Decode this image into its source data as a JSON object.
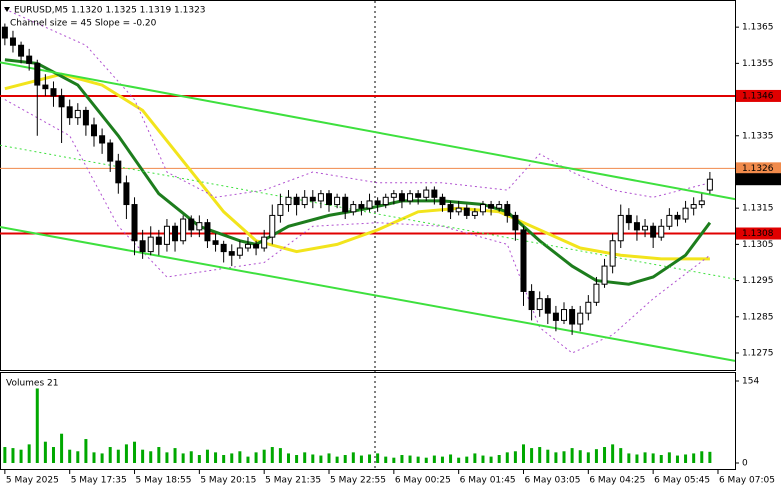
{
  "chart_data": {
    "type": "candlestick",
    "title": "EURUSD,M5  1.1320 1.1325 1.1319 1.1323",
    "subtitle": "Channel size = 45 Slope = -0.20",
    "xlim": [
      -0.6,
      90.1
    ],
    "ylim": [
      1.12703,
      1.13725
    ],
    "yticks": [
      1.1365,
      1.1355,
      1.1335,
      1.1315,
      1.1305,
      1.1295,
      1.1285,
      1.1275
    ],
    "xticks": [
      {
        "value": 0,
        "label": "5 May 2025"
      },
      {
        "value": 8,
        "label": "5 May 17:35"
      },
      {
        "value": 16,
        "label": "5 May 18:55"
      },
      {
        "value": 24,
        "label": "5 May 20:15"
      },
      {
        "value": 32,
        "label": "5 May 21:35"
      },
      {
        "value": 40,
        "label": "5 May 22:55"
      },
      {
        "value": 48,
        "label": "6 May 00:25"
      },
      {
        "value": 56,
        "label": "6 May 01:45"
      },
      {
        "value": 64,
        "label": "6 May 03:05"
      },
      {
        "value": 72,
        "label": "6 May 04:25"
      },
      {
        "value": 80,
        "label": "6 May 05:45"
      },
      {
        "value": 88,
        "label": "6 May 07:05"
      }
    ],
    "ohlc": [
      [
        1.1365,
        1.1366,
        1.136,
        1.1362
      ],
      [
        1.1362,
        1.1364,
        1.1358,
        1.136
      ],
      [
        1.136,
        1.1361,
        1.1355,
        1.1357
      ],
      [
        1.1357,
        1.1359,
        1.1353,
        1.1355
      ],
      [
        1.1355,
        1.1356,
        1.1335,
        1.1349
      ],
      [
        1.1349,
        1.1352,
        1.1346,
        1.1348
      ],
      [
        1.1348,
        1.135,
        1.1343,
        1.1346
      ],
      [
        1.1346,
        1.1348,
        1.1333,
        1.1343
      ],
      [
        1.1343,
        1.1345,
        1.1338,
        1.134
      ],
      [
        1.134,
        1.1344,
        1.1338,
        1.1342
      ],
      [
        1.1342,
        1.1343,
        1.1335,
        1.1338
      ],
      [
        1.1338,
        1.134,
        1.1332,
        1.1335
      ],
      [
        1.1335,
        1.1337,
        1.133,
        1.1333
      ],
      [
        1.1333,
        1.1334,
        1.1325,
        1.1328
      ],
      [
        1.1328,
        1.133,
        1.1319,
        1.1322
      ],
      [
        1.1322,
        1.1324,
        1.1312,
        1.1316
      ],
      [
        1.1316,
        1.1318,
        1.1302,
        1.1306
      ],
      [
        1.1306,
        1.1309,
        1.1301,
        1.1303
      ],
      [
        1.1303,
        1.131,
        1.1302,
        1.1307
      ],
      [
        1.1307,
        1.1309,
        1.1302,
        1.1305
      ],
      [
        1.1305,
        1.1312,
        1.1303,
        1.131
      ],
      [
        1.131,
        1.1311,
        1.1303,
        1.1306
      ],
      [
        1.1306,
        1.1313,
        1.1305,
        1.1312
      ],
      [
        1.1312,
        1.1313,
        1.1307,
        1.1309
      ],
      [
        1.1309,
        1.1313,
        1.1307,
        1.1311
      ],
      [
        1.1311,
        1.1312,
        1.1304,
        1.1306
      ],
      [
        1.1306,
        1.1308,
        1.1303,
        1.1305
      ],
      [
        1.1305,
        1.1306,
        1.13,
        1.1303
      ],
      [
        1.1303,
        1.1305,
        1.1299,
        1.1302
      ],
      [
        1.1302,
        1.1306,
        1.1301,
        1.1304
      ],
      [
        1.1304,
        1.1307,
        1.1303,
        1.1305
      ],
      [
        1.1305,
        1.1306,
        1.1302,
        1.1304
      ],
      [
        1.1304,
        1.1309,
        1.1303,
        1.1307
      ],
      [
        1.1307,
        1.1316,
        1.1305,
        1.1313
      ],
      [
        1.1313,
        1.1319,
        1.1311,
        1.1316
      ],
      [
        1.1316,
        1.132,
        1.1314,
        1.1318
      ],
      [
        1.1318,
        1.1319,
        1.1313,
        1.1316
      ],
      [
        1.1316,
        1.132,
        1.1315,
        1.1318
      ],
      [
        1.1318,
        1.132,
        1.1315,
        1.1317
      ],
      [
        1.1317,
        1.132,
        1.1315,
        1.1319
      ],
      [
        1.1319,
        1.132,
        1.1314,
        1.1316
      ],
      [
        1.1316,
        1.1319,
        1.1315,
        1.1318
      ],
      [
        1.1318,
        1.1319,
        1.1312,
        1.1314
      ],
      [
        1.1314,
        1.1317,
        1.1313,
        1.1316
      ],
      [
        1.1316,
        1.1317,
        1.1313,
        1.1315
      ],
      [
        1.1315,
        1.1319,
        1.1314,
        1.1317
      ],
      [
        1.1317,
        1.1318,
        1.1314,
        1.1316
      ],
      [
        1.1316,
        1.1319,
        1.1315,
        1.1318
      ],
      [
        1.1318,
        1.132,
        1.1316,
        1.1319
      ],
      [
        1.1319,
        1.132,
        1.1315,
        1.1317
      ],
      [
        1.1317,
        1.132,
        1.1316,
        1.1319
      ],
      [
        1.1319,
        1.132,
        1.1316,
        1.1318
      ],
      [
        1.1318,
        1.1321,
        1.1317,
        1.132
      ],
      [
        1.132,
        1.1321,
        1.1316,
        1.1318
      ],
      [
        1.1318,
        1.1319,
        1.1314,
        1.1316
      ],
      [
        1.1316,
        1.1317,
        1.1312,
        1.1314
      ],
      [
        1.1314,
        1.1317,
        1.1313,
        1.1315
      ],
      [
        1.1315,
        1.1316,
        1.1312,
        1.1313
      ],
      [
        1.1313,
        1.1315,
        1.1312,
        1.1314
      ],
      [
        1.1314,
        1.1317,
        1.1313,
        1.1316
      ],
      [
        1.1316,
        1.1317,
        1.1313,
        1.1315
      ],
      [
        1.1315,
        1.1317,
        1.1314,
        1.1316
      ],
      [
        1.1316,
        1.1317,
        1.1311,
        1.1313
      ],
      [
        1.1313,
        1.1314,
        1.1306,
        1.1309
      ],
      [
        1.1309,
        1.131,
        1.1288,
        1.1292
      ],
      [
        1.1292,
        1.1294,
        1.1284,
        1.1287
      ],
      [
        1.1287,
        1.1292,
        1.1285,
        1.129
      ],
      [
        1.129,
        1.1291,
        1.1283,
        1.1286
      ],
      [
        1.1286,
        1.1288,
        1.1281,
        1.1284
      ],
      [
        1.1284,
        1.1289,
        1.1283,
        1.1287
      ],
      [
        1.1287,
        1.1288,
        1.128,
        1.1283
      ],
      [
        1.1283,
        1.1288,
        1.1281,
        1.1286
      ],
      [
        1.1286,
        1.1291,
        1.1284,
        1.1289
      ],
      [
        1.1289,
        1.1296,
        1.1288,
        1.1294
      ],
      [
        1.1294,
        1.1301,
        1.1293,
        1.1299
      ],
      [
        1.1299,
        1.1308,
        1.1297,
        1.1306
      ],
      [
        1.1306,
        1.1316,
        1.1304,
        1.1313
      ],
      [
        1.1313,
        1.1315,
        1.1309,
        1.1311
      ],
      [
        1.1311,
        1.1313,
        1.1306,
        1.1309
      ],
      [
        1.1309,
        1.1312,
        1.1307,
        1.131
      ],
      [
        1.131,
        1.1311,
        1.1304,
        1.1307
      ],
      [
        1.1307,
        1.1312,
        1.1306,
        1.131
      ],
      [
        1.131,
        1.1315,
        1.1309,
        1.1313
      ],
      [
        1.1313,
        1.1314,
        1.131,
        1.1312
      ],
      [
        1.1312,
        1.1317,
        1.1311,
        1.1315
      ],
      [
        1.1315,
        1.1318,
        1.1313,
        1.1316
      ],
      [
        1.1316,
        1.1319,
        1.1315,
        1.1317
      ],
      [
        1.132,
        1.1325,
        1.1319,
        1.1323
      ]
    ],
    "lines": [
      {
        "name": "ma_slow",
        "color": "#f2e41c",
        "width": 3,
        "x": [
          0,
          7,
          12,
          17,
          22,
          27,
          31,
          36,
          41,
          46,
          51,
          56,
          61,
          66,
          71,
          76,
          81,
          87
        ],
        "values": [
          1.1348,
          1.1352,
          1.1349,
          1.1342,
          1.1328,
          1.1314,
          1.1306,
          1.1303,
          1.1305,
          1.1309,
          1.1314,
          1.1315,
          1.1314,
          1.1309,
          1.1304,
          1.1302,
          1.1301,
          1.1301
        ]
      },
      {
        "name": "ma_fast",
        "color": "#1d7d1d",
        "width": 3,
        "x": [
          0,
          4,
          9,
          14,
          19,
          24,
          29,
          31,
          35,
          40,
          45,
          49,
          54,
          59,
          62,
          66,
          70,
          73,
          77,
          80,
          84,
          87
        ],
        "values": [
          1.1356,
          1.1355,
          1.1349,
          1.1335,
          1.1319,
          1.131,
          1.1306,
          1.1305,
          1.131,
          1.1313,
          1.1315,
          1.1317,
          1.1317,
          1.1316,
          1.1314,
          1.1306,
          1.1299,
          1.1295,
          1.1294,
          1.1296,
          1.1302,
          1.1311
        ]
      },
      {
        "name": "band_upper",
        "color": "#b050d0",
        "width": 1,
        "dash": true,
        "x": [
          0,
          10,
          16,
          20,
          26,
          32,
          38,
          46,
          54,
          62,
          66,
          70,
          75,
          80,
          87
        ],
        "values": [
          1.137,
          1.136,
          1.1345,
          1.1325,
          1.1318,
          1.132,
          1.1325,
          1.1322,
          1.1322,
          1.132,
          1.133,
          1.1325,
          1.132,
          1.1318,
          1.1322
        ]
      },
      {
        "name": "band_lower",
        "color": "#b050d0",
        "width": 1,
        "dash": true,
        "x": [
          0,
          8,
          14,
          20,
          26,
          32,
          38,
          46,
          54,
          62,
          66,
          70,
          75,
          80,
          87
        ],
        "values": [
          1.1345,
          1.1335,
          1.131,
          1.1296,
          1.1298,
          1.13,
          1.131,
          1.1311,
          1.131,
          1.1305,
          1.1282,
          1.1275,
          1.128,
          1.129,
          1.1302
        ]
      },
      {
        "name": "channel_upper",
        "color": "#3ee03e",
        "width": 2,
        "x": [
          -0.6,
          90.1
        ],
        "values": [
          1.13553,
          1.13175
        ]
      },
      {
        "name": "channel_middle",
        "color": "#3ee03e",
        "width": 1,
        "dash": true,
        "x": [
          -0.6,
          90.1
        ],
        "values": [
          1.13324,
          1.12954
        ]
      },
      {
        "name": "channel_lower",
        "color": "#3ee03e",
        "width": 2,
        "x": [
          -0.6,
          90.1
        ],
        "values": [
          1.13098,
          1.12728
        ]
      }
    ],
    "levels": [
      {
        "value": 1.1346,
        "color": "#e00000",
        "width": 2
      },
      {
        "value": 1.1326,
        "color": "#f08a4b",
        "width": 1
      },
      {
        "value": 1.1308,
        "color": "#e00000",
        "width": 2
      }
    ],
    "current_price": 1.1323,
    "volume_label": "Volumes 21",
    "volume_color": "#00a800",
    "volume_ylim": [
      0,
      154
    ],
    "volume_yticks": [
      154,
      0
    ],
    "volumes": [
      30,
      28,
      25,
      35,
      140,
      40,
      30,
      55,
      25,
      22,
      45,
      20,
      18,
      30,
      25,
      35,
      40,
      25,
      22,
      30,
      20,
      28,
      18,
      22,
      15,
      25,
      20,
      15,
      18,
      22,
      12,
      20,
      25,
      30,
      28,
      18,
      15,
      20,
      16,
      14,
      18,
      12,
      15,
      20,
      14,
      16,
      18,
      12,
      10,
      15,
      14,
      12,
      10,
      14,
      12,
      16,
      10,
      12,
      18,
      14,
      12,
      15,
      20,
      22,
      35,
      28,
      30,
      25,
      20,
      22,
      28,
      24,
      20,
      26,
      30,
      35,
      28,
      18,
      16,
      20,
      18,
      15,
      20,
      14,
      16,
      18,
      22,
      21
    ]
  }
}
